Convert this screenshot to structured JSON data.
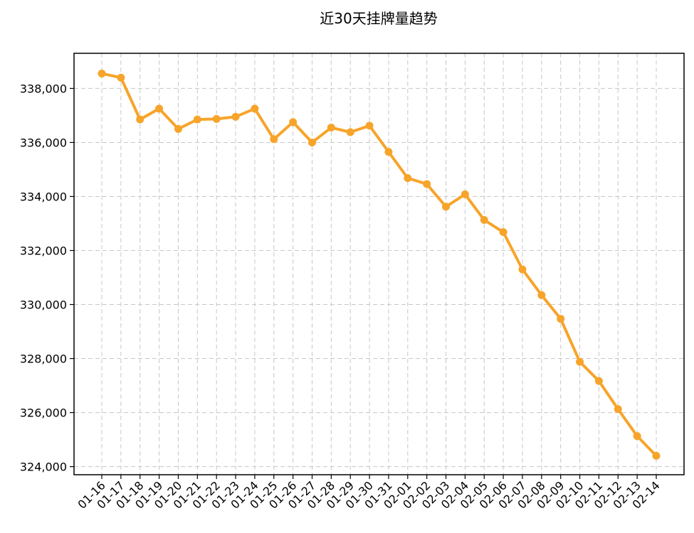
{
  "chart_data": {
    "type": "line",
    "title": "近30天挂牌量趋势",
    "xlabel": "",
    "ylabel": "",
    "categories": [
      "01-16",
      "01-17",
      "01-18",
      "01-19",
      "01-20",
      "01-21",
      "01-22",
      "01-23",
      "01-24",
      "01-25",
      "01-26",
      "01-27",
      "01-28",
      "01-29",
      "01-30",
      "01-31",
      "02-01",
      "02-02",
      "02-03",
      "02-04",
      "02-05",
      "02-06",
      "02-07",
      "02-08",
      "02-09",
      "02-10",
      "02-11",
      "02-12",
      "02-13",
      "02-14"
    ],
    "series": [
      {
        "color": "#f7a42a",
        "values": [
          338550,
          338400,
          336850,
          337250,
          336500,
          336850,
          336870,
          336950,
          337250,
          336120,
          336750,
          336000,
          336550,
          336380,
          336620,
          335650,
          334680,
          334460,
          333620,
          334080,
          333130,
          332680,
          331300,
          330350,
          329470,
          327880,
          327170,
          326130,
          325130,
          324400
        ]
      }
    ],
    "ylim": [
      323700,
      339300
    ],
    "yticks": [
      324000,
      326000,
      328000,
      330000,
      332000,
      334000,
      336000,
      338000
    ],
    "ytick_labels": [
      "324,000",
      "326,000",
      "328,000",
      "330,000",
      "332,000",
      "334,000",
      "336,000",
      "338,000"
    ],
    "grid": true,
    "legend": "none"
  }
}
